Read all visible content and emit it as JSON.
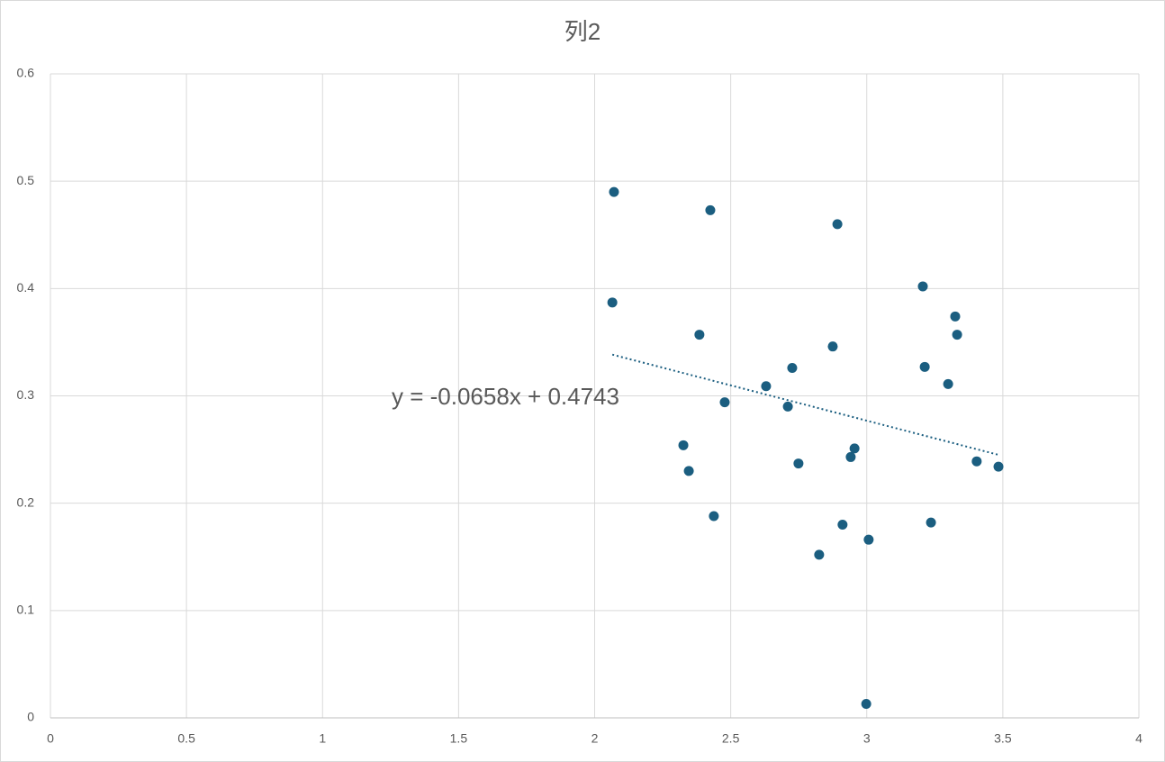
{
  "chart_data": {
    "type": "scatter",
    "title": "列2",
    "series": [
      {
        "name": "列2",
        "color": "#1b5e80",
        "x": [
          2.071,
          2.425,
          2.892,
          2.065,
          3.206,
          3.325,
          3.332,
          2.385,
          2.875,
          2.726,
          3.213,
          2.63,
          3.299,
          2.478,
          2.71,
          2.326,
          2.955,
          2.941,
          2.749,
          3.404,
          3.484,
          2.346,
          2.438,
          2.911,
          3.236,
          3.007,
          2.825,
          2.998
        ],
        "values": [
          0.49,
          0.473,
          0.46,
          0.387,
          0.402,
          0.374,
          0.357,
          0.357,
          0.346,
          0.326,
          0.327,
          0.309,
          0.311,
          0.294,
          0.29,
          0.254,
          0.251,
          0.243,
          0.237,
          0.239,
          0.234,
          0.23,
          0.188,
          0.18,
          0.182,
          0.166,
          0.152,
          0.013
        ]
      }
    ],
    "trendline": {
      "slope": -0.0658,
      "intercept": 0.4743,
      "label": "y = -0.0658x + 0.4743",
      "color": "#1b5e80"
    },
    "xlim": [
      0,
      4
    ],
    "xticks": [
      0,
      0.5,
      1,
      1.5,
      2,
      2.5,
      3,
      3.5,
      4
    ],
    "ylim": [
      0,
      0.6
    ],
    "yticks": [
      0,
      0.1,
      0.2,
      0.3,
      0.4,
      0.5,
      0.6
    ],
    "grid": true
  }
}
